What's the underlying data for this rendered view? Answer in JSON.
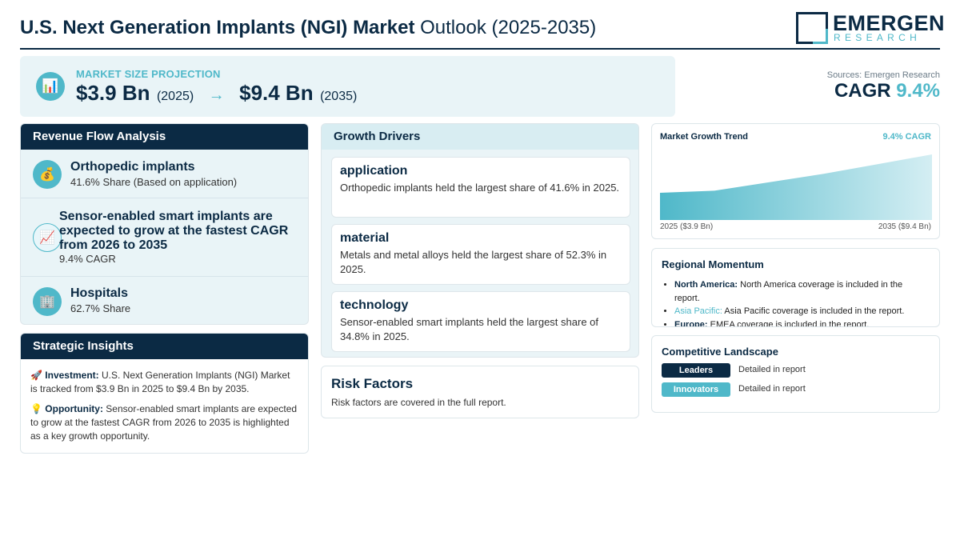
{
  "header": {
    "title_bold": "U.S. Next Generation Implants (NGI) Market",
    "title_rest": "Outlook (2025-2035)",
    "logo_word": "EMERGEN",
    "logo_sub": "RESEARCH"
  },
  "projection": {
    "icon": "bar-chart-icon",
    "label": "MARKET SIZE PROJECTION",
    "start_value": "$3.9 Bn",
    "start_year": "(2025)",
    "arrow": "→",
    "end_value": "$9.4 Bn",
    "end_year": "(2035)"
  },
  "sources": "Sources: Emergen Research",
  "cagr": {
    "label": "CAGR",
    "value": "9.4%"
  },
  "revenue": {
    "title": "Revenue Flow Analysis",
    "items": [
      {
        "icon": "money-bag-icon",
        "title": "Orthopedic implants",
        "sub": "41.6% Share (Based on application)"
      },
      {
        "icon": "trend-up-icon",
        "title": "Sensor-enabled smart implants are expected to grow at the fastest CAGR from 2026 to 2035",
        "sub": "9.4% CAGR"
      },
      {
        "icon": "building-icon",
        "title": "Hospitals",
        "sub": "62.7% Share"
      }
    ]
  },
  "insights": {
    "title": "Strategic Insights",
    "investment_label": "Investment:",
    "investment_text": "U.S. Next Generation Implants (NGI) Market is tracked from $3.9 Bn in 2025 to $9.4 Bn by 2035.",
    "opportunity_label": "Opportunity:",
    "opportunity_text": "Sensor-enabled smart implants are expected to grow at the fastest CAGR from 2026 to 2035 is highlighted as a key growth opportunity."
  },
  "drivers": {
    "title": "Growth Drivers",
    "cards": [
      {
        "title": "application",
        "text": "Orthopedic implants held the largest share of 41.6% in 2025."
      },
      {
        "title": "material",
        "text": "Metals and metal alloys held the largest share of 52.3% in 2025."
      },
      {
        "title": "technology",
        "text": "Sensor-enabled smart implants held the largest share of 34.8% in 2025."
      }
    ]
  },
  "risk": {
    "title": "Risk Factors",
    "text": "Risk factors are covered in the full report."
  },
  "trend": {
    "title": "Market Growth Trend",
    "cagr_label": "9.4% CAGR",
    "start_label": "2025 ($3.9 Bn)",
    "end_label": "2035 ($9.4 Bn)"
  },
  "chart_data": {
    "type": "area",
    "x": [
      2025,
      2027,
      2029,
      2031,
      2033,
      2035
    ],
    "values": [
      3.9,
      4.2,
      5.4,
      6.6,
      8.0,
      9.4
    ],
    "title": "Market Growth Trend",
    "xlabel": "",
    "ylabel": "",
    "colors": [
      "#4fb8c9"
    ]
  },
  "regional": {
    "title": "Regional Momentum",
    "items": [
      {
        "name": "North America:",
        "text": "North America coverage is included in the report."
      },
      {
        "name": "Asia Pacific:",
        "text": "Asia Pacific coverage is included in the report."
      },
      {
        "name": "Europe:",
        "text": "EMEA coverage is included in the report."
      }
    ]
  },
  "competitive": {
    "title": "Competitive Landscape",
    "rows": [
      {
        "label": "Leaders",
        "text": "Detailed in report"
      },
      {
        "label": "Innovators",
        "text": "Detailed in report"
      }
    ]
  },
  "colors": {
    "navy": "#0b2a44",
    "teal": "#4fb8c9",
    "panel_bg": "#e9f4f7"
  }
}
